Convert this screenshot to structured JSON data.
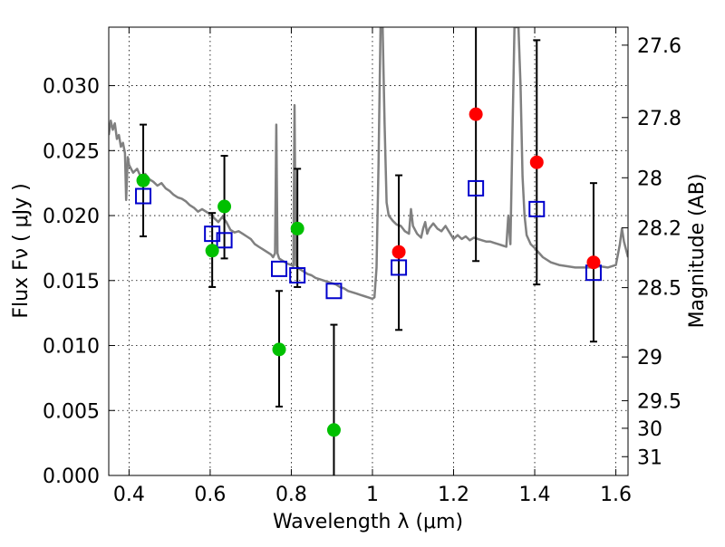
{
  "chart_data": {
    "type": "scatter",
    "xlabel": "Wavelength  λ (μm)",
    "ylabel": "Flux  Fν  ( μJy )",
    "y2label": "Magnitude (AB)",
    "xlim": [
      0.35,
      1.63
    ],
    "ylim": [
      0.0,
      0.0345
    ],
    "grid": true,
    "grid_style": "dotted",
    "x_ticks": [
      0.4,
      0.6,
      0.8,
      1.0,
      1.2,
      1.4,
      1.6
    ],
    "x_tick_labels": [
      "0.4",
      "0.6",
      "0.8",
      "1",
      "1.2",
      "1.4",
      "1.6"
    ],
    "y_ticks": [
      0.0,
      0.005,
      0.01,
      0.015,
      0.02,
      0.025,
      0.03
    ],
    "y_tick_labels": [
      "0.000",
      "0.005",
      "0.010",
      "0.015",
      "0.020",
      "0.025",
      "0.030"
    ],
    "y2_ticks": [
      27.6,
      27.8,
      28.0,
      28.2,
      28.5,
      29.0,
      29.5,
      30.0,
      31.0
    ],
    "y2_tick_labels": [
      "27.6",
      "27.8",
      "28",
      "28.2",
      "28.5",
      "29",
      "29.5",
      "30",
      "31"
    ],
    "colors": {
      "model": "#808080",
      "green_obs": "#00c000",
      "red_obs": "#ff0000",
      "model_phot": "#0000cc",
      "errorbar": "#000000"
    },
    "series": [
      {
        "kind": "line",
        "points": [
          [
            0.35,
            0.0262
          ],
          [
            0.355,
            0.0273
          ],
          [
            0.36,
            0.0266
          ],
          [
            0.365,
            0.0271
          ],
          [
            0.37,
            0.0259
          ],
          [
            0.375,
            0.0262
          ],
          [
            0.38,
            0.0253
          ],
          [
            0.385,
            0.0256
          ],
          [
            0.39,
            0.0248
          ],
          [
            0.393,
            0.0212
          ],
          [
            0.397,
            0.0245
          ],
          [
            0.4,
            0.0239
          ],
          [
            0.41,
            0.0233
          ],
          [
            0.42,
            0.0236
          ],
          [
            0.43,
            0.0229
          ],
          [
            0.44,
            0.0232
          ],
          [
            0.45,
            0.0228
          ],
          [
            0.46,
            0.0226
          ],
          [
            0.47,
            0.0223
          ],
          [
            0.48,
            0.0225
          ],
          [
            0.49,
            0.0221
          ],
          [
            0.5,
            0.0219
          ],
          [
            0.51,
            0.0216
          ],
          [
            0.52,
            0.0214
          ],
          [
            0.53,
            0.0213
          ],
          [
            0.54,
            0.0211
          ],
          [
            0.55,
            0.0208
          ],
          [
            0.56,
            0.0206
          ],
          [
            0.57,
            0.0203
          ],
          [
            0.58,
            0.0205
          ],
          [
            0.59,
            0.0203
          ],
          [
            0.6,
            0.0201
          ],
          [
            0.61,
            0.0198
          ],
          [
            0.62,
            0.0195
          ],
          [
            0.63,
            0.0199
          ],
          [
            0.64,
            0.0195
          ],
          [
            0.65,
            0.0189
          ],
          [
            0.66,
            0.0187
          ],
          [
            0.67,
            0.0188
          ],
          [
            0.68,
            0.0186
          ],
          [
            0.69,
            0.0184
          ],
          [
            0.7,
            0.0182
          ],
          [
            0.71,
            0.0178
          ],
          [
            0.72,
            0.0176
          ],
          [
            0.73,
            0.0174
          ],
          [
            0.74,
            0.0172
          ],
          [
            0.75,
            0.017
          ],
          [
            0.755,
            0.0168
          ],
          [
            0.76,
            0.0171
          ],
          [
            0.763,
            0.027
          ],
          [
            0.766,
            0.0171
          ],
          [
            0.77,
            0.0167
          ],
          [
            0.78,
            0.0165
          ],
          [
            0.79,
            0.0163
          ],
          [
            0.8,
            0.0162
          ],
          [
            0.805,
            0.0161
          ],
          [
            0.808,
            0.0285
          ],
          [
            0.811,
            0.0162
          ],
          [
            0.82,
            0.0159
          ],
          [
            0.83,
            0.0157
          ],
          [
            0.84,
            0.0155
          ],
          [
            0.85,
            0.0154
          ],
          [
            0.86,
            0.0152
          ],
          [
            0.87,
            0.0151
          ],
          [
            0.88,
            0.015
          ],
          [
            0.89,
            0.0149
          ],
          [
            0.9,
            0.0148
          ],
          [
            0.91,
            0.0147
          ],
          [
            0.92,
            0.0145
          ],
          [
            0.93,
            0.0144
          ],
          [
            0.94,
            0.0142
          ],
          [
            0.95,
            0.0141
          ],
          [
            0.96,
            0.014
          ],
          [
            0.97,
            0.0139
          ],
          [
            0.98,
            0.0138
          ],
          [
            0.99,
            0.0137
          ],
          [
            1.0,
            0.0136
          ],
          [
            1.005,
            0.0137
          ],
          [
            1.01,
            0.016
          ],
          [
            1.015,
            0.024
          ],
          [
            1.02,
            0.0345
          ],
          [
            1.025,
            0.0345
          ],
          [
            1.03,
            0.027
          ],
          [
            1.035,
            0.021
          ],
          [
            1.04,
            0.02
          ],
          [
            1.05,
            0.0196
          ],
          [
            1.06,
            0.0193
          ],
          [
            1.07,
            0.0192
          ],
          [
            1.08,
            0.0188
          ],
          [
            1.09,
            0.0186
          ],
          [
            1.095,
            0.0205
          ],
          [
            1.1,
            0.0192
          ],
          [
            1.11,
            0.0186
          ],
          [
            1.12,
            0.0183
          ],
          [
            1.125,
            0.019
          ],
          [
            1.13,
            0.0195
          ],
          [
            1.135,
            0.0186
          ],
          [
            1.14,
            0.019
          ],
          [
            1.15,
            0.0194
          ],
          [
            1.16,
            0.019
          ],
          [
            1.17,
            0.0188
          ],
          [
            1.18,
            0.0192
          ],
          [
            1.19,
            0.0187
          ],
          [
            1.2,
            0.0182
          ],
          [
            1.21,
            0.0185
          ],
          [
            1.22,
            0.0182
          ],
          [
            1.23,
            0.0184
          ],
          [
            1.24,
            0.0181
          ],
          [
            1.25,
            0.0183
          ],
          [
            1.26,
            0.0182
          ],
          [
            1.27,
            0.0181
          ],
          [
            1.28,
            0.018
          ],
          [
            1.29,
            0.018
          ],
          [
            1.3,
            0.0179
          ],
          [
            1.31,
            0.0178
          ],
          [
            1.32,
            0.0177
          ],
          [
            1.33,
            0.0176
          ],
          [
            1.335,
            0.02
          ],
          [
            1.34,
            0.0178
          ],
          [
            1.345,
            0.026
          ],
          [
            1.35,
            0.0345
          ],
          [
            1.36,
            0.0345
          ],
          [
            1.365,
            0.03
          ],
          [
            1.37,
            0.023
          ],
          [
            1.375,
            0.02
          ],
          [
            1.38,
            0.0185
          ],
          [
            1.39,
            0.0178
          ],
          [
            1.4,
            0.0175
          ],
          [
            1.42,
            0.0168
          ],
          [
            1.44,
            0.0164
          ],
          [
            1.46,
            0.0162
          ],
          [
            1.48,
            0.0161
          ],
          [
            1.5,
            0.016
          ],
          [
            1.52,
            0.016
          ],
          [
            1.54,
            0.016
          ],
          [
            1.56,
            0.0161
          ],
          [
            1.58,
            0.016
          ],
          [
            1.6,
            0.0162
          ],
          [
            1.61,
            0.0178
          ],
          [
            1.615,
            0.019
          ],
          [
            1.62,
            0.018
          ],
          [
            1.63,
            0.0168
          ]
        ]
      },
      {
        "kind": "scatter",
        "marker": "circle",
        "color": "green",
        "points": [
          {
            "x": 0.435,
            "y": 0.0227,
            "ylo": 0.0184,
            "yhi": 0.027
          },
          {
            "x": 0.605,
            "y": 0.0173,
            "ylo": 0.0145,
            "yhi": 0.0202
          },
          {
            "x": 0.635,
            "y": 0.0207,
            "ylo": 0.0167,
            "yhi": 0.0246
          },
          {
            "x": 0.77,
            "y": 0.0097,
            "ylo": 0.0053,
            "yhi": 0.0142
          },
          {
            "x": 0.815,
            "y": 0.019,
            "ylo": 0.0145,
            "yhi": 0.0236
          },
          {
            "x": 0.905,
            "y": 0.0035,
            "ylo": 0.0,
            "yhi": 0.0116
          }
        ]
      },
      {
        "kind": "scatter",
        "marker": "circle",
        "color": "red",
        "points": [
          {
            "x": 1.065,
            "y": 0.0172,
            "ylo": 0.0112,
            "yhi": 0.0231
          },
          {
            "x": 1.255,
            "y": 0.0278,
            "ylo": 0.0165,
            "yhi": 0.0345
          },
          {
            "x": 1.405,
            "y": 0.0241,
            "ylo": 0.0147,
            "yhi": 0.0335
          },
          {
            "x": 1.545,
            "y": 0.0164,
            "ylo": 0.0103,
            "yhi": 0.0225
          }
        ]
      },
      {
        "kind": "scatter",
        "marker": "square-open",
        "color": "blue",
        "points": [
          {
            "x": 0.435,
            "y": 0.0215
          },
          {
            "x": 0.605,
            "y": 0.0186
          },
          {
            "x": 0.635,
            "y": 0.0181
          },
          {
            "x": 0.77,
            "y": 0.0159
          },
          {
            "x": 0.815,
            "y": 0.0154
          },
          {
            "x": 0.905,
            "y": 0.0142
          },
          {
            "x": 1.065,
            "y": 0.016
          },
          {
            "x": 1.255,
            "y": 0.0221
          },
          {
            "x": 1.405,
            "y": 0.0205
          },
          {
            "x": 1.545,
            "y": 0.0156
          }
        ]
      }
    ]
  }
}
